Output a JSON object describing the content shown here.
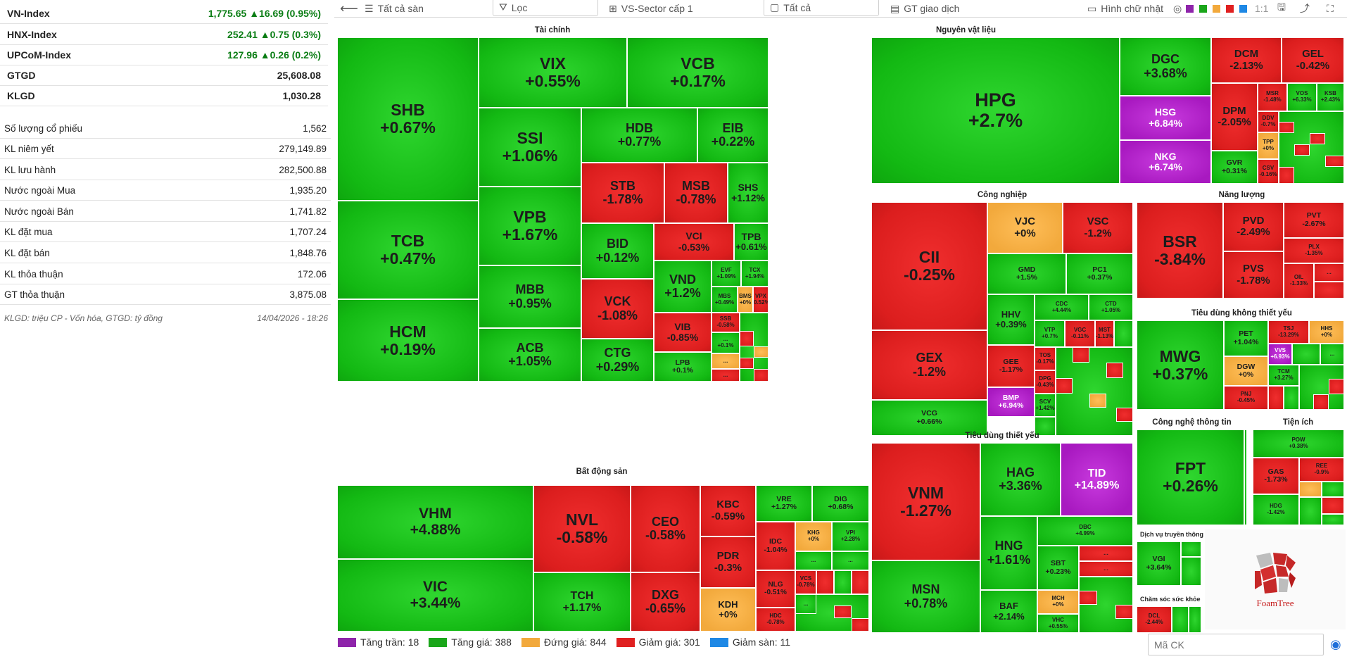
{
  "indices": [
    {
      "name": "VN-Index",
      "value": "1,775.65 ▲16.69 (0.95%)"
    },
    {
      "name": "HNX-Index",
      "value": "252.41 ▲0.75 (0.3%)"
    },
    {
      "name": "UPCoM-Index",
      "value": "127.96 ▲0.26 (0.2%)"
    },
    {
      "name": "GTGD",
      "value": "25,608.08"
    },
    {
      "name": "KLGD",
      "value": "1,030.28"
    }
  ],
  "stats": [
    {
      "label": "Số lượng cổ phiếu",
      "value": "1,562"
    },
    {
      "label": "KL niêm yết",
      "value": "279,149.89"
    },
    {
      "label": "KL lưu hành",
      "value": "282,500.88"
    },
    {
      "label": "Nước ngoài Mua",
      "value": "1,935.20"
    },
    {
      "label": "Nước ngoài Bán",
      "value": "1,741.82"
    },
    {
      "label": "KL đặt mua",
      "value": "1,707.24"
    },
    {
      "label": "KL đặt bán",
      "value": "1,848.76"
    },
    {
      "label": "KL thỏa thuận",
      "value": "172.06"
    },
    {
      "label": "GT thỏa thuận",
      "value": "3,875.08"
    }
  ],
  "footnote": {
    "units": "KLGD: triệu CP - Vốn hóa, GTGD: tỷ đồng",
    "timestamp": "14/04/2026 - 18:26"
  },
  "toolbar": {
    "back_icon": "arrow-left-icon",
    "all_floors": "Tất cả sàn",
    "filter": "Lọc",
    "sector": "VS-Sector cấp 1",
    "all": "Tất cả",
    "value_mode": "GT giao dịch",
    "shape": "Hình chữ nhật",
    "ratio": "1:1",
    "swatches": [
      "#8e24aa",
      "#1aa61a",
      "#f2a93c",
      "#e02020",
      "#1e88e5"
    ]
  },
  "sectors": {
    "tai_chinh": "Tài chính",
    "nguyen_vat_lieu": "Nguyên vật liệu",
    "bat_dong_san": "Bất động sản",
    "cong_nghiep": "Công nghiệp",
    "nang_luong": "Năng lượng",
    "tieu_dung_thiet_yeu": "Tiêu dùng thiết yếu",
    "tieu_dung_khong_thiet_yeu": "Tiêu dùng không thiết yếu",
    "cong_nghe": "Công nghệ thông tin",
    "tien_ich": "Tiện ích",
    "dich_vu_truyen_thong": "Dịch vụ truyền thông",
    "cham_soc_suc_khoe": "Chăm sóc sức khỏe"
  },
  "tiles": {
    "SHB": [
      "SHB",
      "+0.67%"
    ],
    "TCB": [
      "TCB",
      "+0.47%"
    ],
    "HCM": [
      "HCM",
      "+0.19%"
    ],
    "VIX": [
      "VIX",
      "+0.55%"
    ],
    "VCB": [
      "VCB",
      "+0.17%"
    ],
    "SSI": [
      "SSI",
      "+1.06%"
    ],
    "HDB": [
      "HDB",
      "+0.77%"
    ],
    "EIB": [
      "EIB",
      "+0.22%"
    ],
    "STB": [
      "STB",
      "-1.78%"
    ],
    "MSB": [
      "MSB",
      "-0.78%"
    ],
    "SHS": [
      "SHS",
      "+1.12%"
    ],
    "VPB": [
      "VPB",
      "+1.67%"
    ],
    "BID": [
      "BID",
      "+0.12%"
    ],
    "VCI": [
      "VCI",
      "-0.53%"
    ],
    "TPB": [
      "TPB",
      "+0.61%"
    ],
    "MBB": [
      "MBB",
      "+0.95%"
    ],
    "VCK": [
      "VCK",
      "-1.08%"
    ],
    "VND": [
      "VND",
      "+1.2%"
    ],
    "EVF": [
      "EVF",
      "+1.09%"
    ],
    "TCX": [
      "TCX",
      "+1.94%"
    ],
    "MBS": [
      "MBS",
      "+0.49%"
    ],
    "BMS": [
      "BMS",
      "+0%"
    ],
    "VPX": [
      "VPX",
      "-0.52%"
    ],
    "ACB": [
      "ACB",
      "+1.05%"
    ],
    "CTG": [
      "CTG",
      "+0.29%"
    ],
    "VIB": [
      "VIB",
      "-0.85%"
    ],
    "SSB": [
      "SSB",
      "-0.58%"
    ],
    "LPB": [
      "LPB",
      "+0.1%"
    ],
    "NAB": [
      "...",
      "+0.1%"
    ],
    "more": [
      "..."
    ],
    "HPG": [
      "HPG",
      "+2.7%"
    ],
    "DGC": [
      "DGC",
      "+3.68%"
    ],
    "DCM": [
      "DCM",
      "-2.13%"
    ],
    "GEL": [
      "GEL",
      "-0.42%"
    ],
    "HSG": [
      "HSG",
      "+6.84%"
    ],
    "DPM": [
      "DPM",
      "-2.05%"
    ],
    "MSR": [
      "MSR",
      "-1.48%"
    ],
    "VOS": [
      "VOS",
      "+6.33%"
    ],
    "KSB": [
      "KSB",
      "+2.43%"
    ],
    "DDV": [
      "DDV",
      "-0.7%"
    ],
    "TPP": [
      "TPP",
      "+0%"
    ],
    "NKG": [
      "NKG",
      "+6.74%"
    ],
    "GVR": [
      "GVR",
      "+0.31%"
    ],
    "CSV": [
      "CSV",
      "-0.16%"
    ],
    "VHM": [
      "VHM",
      "+4.88%"
    ],
    "VIC": [
      "VIC",
      "+3.44%"
    ],
    "NVL": [
      "NVL",
      "-0.58%"
    ],
    "CEO": [
      "CEO",
      "-0.58%"
    ],
    "KBC": [
      "KBC",
      "-0.59%"
    ],
    "VRE": [
      "VRE",
      "+1.27%"
    ],
    "DIG": [
      "DIG",
      "+0.68%"
    ],
    "TCH": [
      "TCH",
      "+1.17%"
    ],
    "DXG": [
      "DXG",
      "-0.65%"
    ],
    "PDR": [
      "PDR",
      "-0.3%"
    ],
    "IDC": [
      "IDC",
      "-1.04%"
    ],
    "KHG": [
      "KHG",
      "+0%"
    ],
    "VPI": [
      "VPI",
      "+2.28%"
    ],
    "KDH": [
      "KDH",
      "+0%"
    ],
    "NLG": [
      "NLG",
      "-0.51%"
    ],
    "HDC": [
      "HDC",
      "-0.78%"
    ],
    "VCS": [
      "VCS",
      "-0.78%"
    ],
    "CII": [
      "CII",
      "-0.25%"
    ],
    "VJC": [
      "VJC",
      "+0%"
    ],
    "VSC": [
      "VSC",
      "-1.2%"
    ],
    "GMD": [
      "GMD",
      "+1.5%"
    ],
    "PC1": [
      "PC1",
      "+0.37%"
    ],
    "HHV": [
      "HHV",
      "+0.39%"
    ],
    "CDC": [
      "CDC",
      "+4.44%"
    ],
    "CTD": [
      "CTD",
      "+1.05%"
    ],
    "GEX": [
      "GEX",
      "-1.2%"
    ],
    "VTP": [
      "VTP",
      "+0.7%"
    ],
    "VGC": [
      "VGC",
      "-0.11%"
    ],
    "MST": [
      "MST",
      "-1.13%"
    ],
    "GEE": [
      "GEE",
      "-1.17%"
    ],
    "TOS": [
      "TOS",
      "-0.17%"
    ],
    "BMP": [
      "BMP",
      "+6.94%"
    ],
    "DPG": [
      "DPG",
      "-0.43%"
    ],
    "SCV": [
      "SCV",
      "+1.42%"
    ],
    "VCG": [
      "VCG",
      "+0.66%"
    ],
    "BSR": [
      "BSR",
      "-3.84%"
    ],
    "PVD": [
      "PVD",
      "-2.49%"
    ],
    "PVT": [
      "PVT",
      "-2.67%"
    ],
    "PVS": [
      "PVS",
      "-1.78%"
    ],
    "PLX": [
      "PLX",
      "-1.35%"
    ],
    "OIL": [
      "OIL",
      "-1.33%"
    ],
    "MWG": [
      "MWG",
      "+0.37%"
    ],
    "PET": [
      "PET",
      "+1.04%"
    ],
    "TSJ": [
      "TSJ",
      "-13.29%"
    ],
    "HHS": [
      "HHS",
      "+0%"
    ],
    "VVS": [
      "VVS",
      "+6.93%"
    ],
    "DGW": [
      "DGW",
      "+0%"
    ],
    "TCM": [
      "TCM",
      "+3.27%"
    ],
    "PNJ": [
      "PNJ",
      "-0.45%"
    ],
    "VNM": [
      "VNM",
      "-1.27%"
    ],
    "HAG": [
      "HAG",
      "+3.36%"
    ],
    "TID": [
      "TID",
      "+14.89%"
    ],
    "DBC": [
      "DBC",
      "+4.99%"
    ],
    "HNG": [
      "HNG",
      "+1.61%"
    ],
    "SBT": [
      "SBT",
      "+0.23%"
    ],
    "MSN": [
      "MSN",
      "+0.78%"
    ],
    "BAF": [
      "BAF",
      "+2.14%"
    ],
    "MCH": [
      "MCH",
      "+0%"
    ],
    "VHC": [
      "VHC",
      "+0.55%"
    ],
    "FPT": [
      "FPT",
      "+0.26%"
    ],
    "POW": [
      "POW",
      "+0.38%"
    ],
    "GAS": [
      "GAS",
      "-1.73%"
    ],
    "REE": [
      "REE",
      "-0.9%"
    ],
    "HDG": [
      "HDG",
      "-1.42%"
    ],
    "VGI": [
      "VGI",
      "+3.64%"
    ],
    "DCL": [
      "DCL",
      "-2.44%"
    ]
  },
  "legend": [
    {
      "label": "Tăng trần: 18",
      "color": "#8e24aa"
    },
    {
      "label": "Tăng giá: 388",
      "color": "#1aa61a"
    },
    {
      "label": "Đứng giá: 844",
      "color": "#f2a93c"
    },
    {
      "label": "Giảm giá: 301",
      "color": "#e02020"
    },
    {
      "label": "Giảm sàn: 11",
      "color": "#1e88e5"
    }
  ],
  "search": {
    "placeholder": "Mã CK"
  },
  "logo": {
    "text": "FoamTree"
  }
}
